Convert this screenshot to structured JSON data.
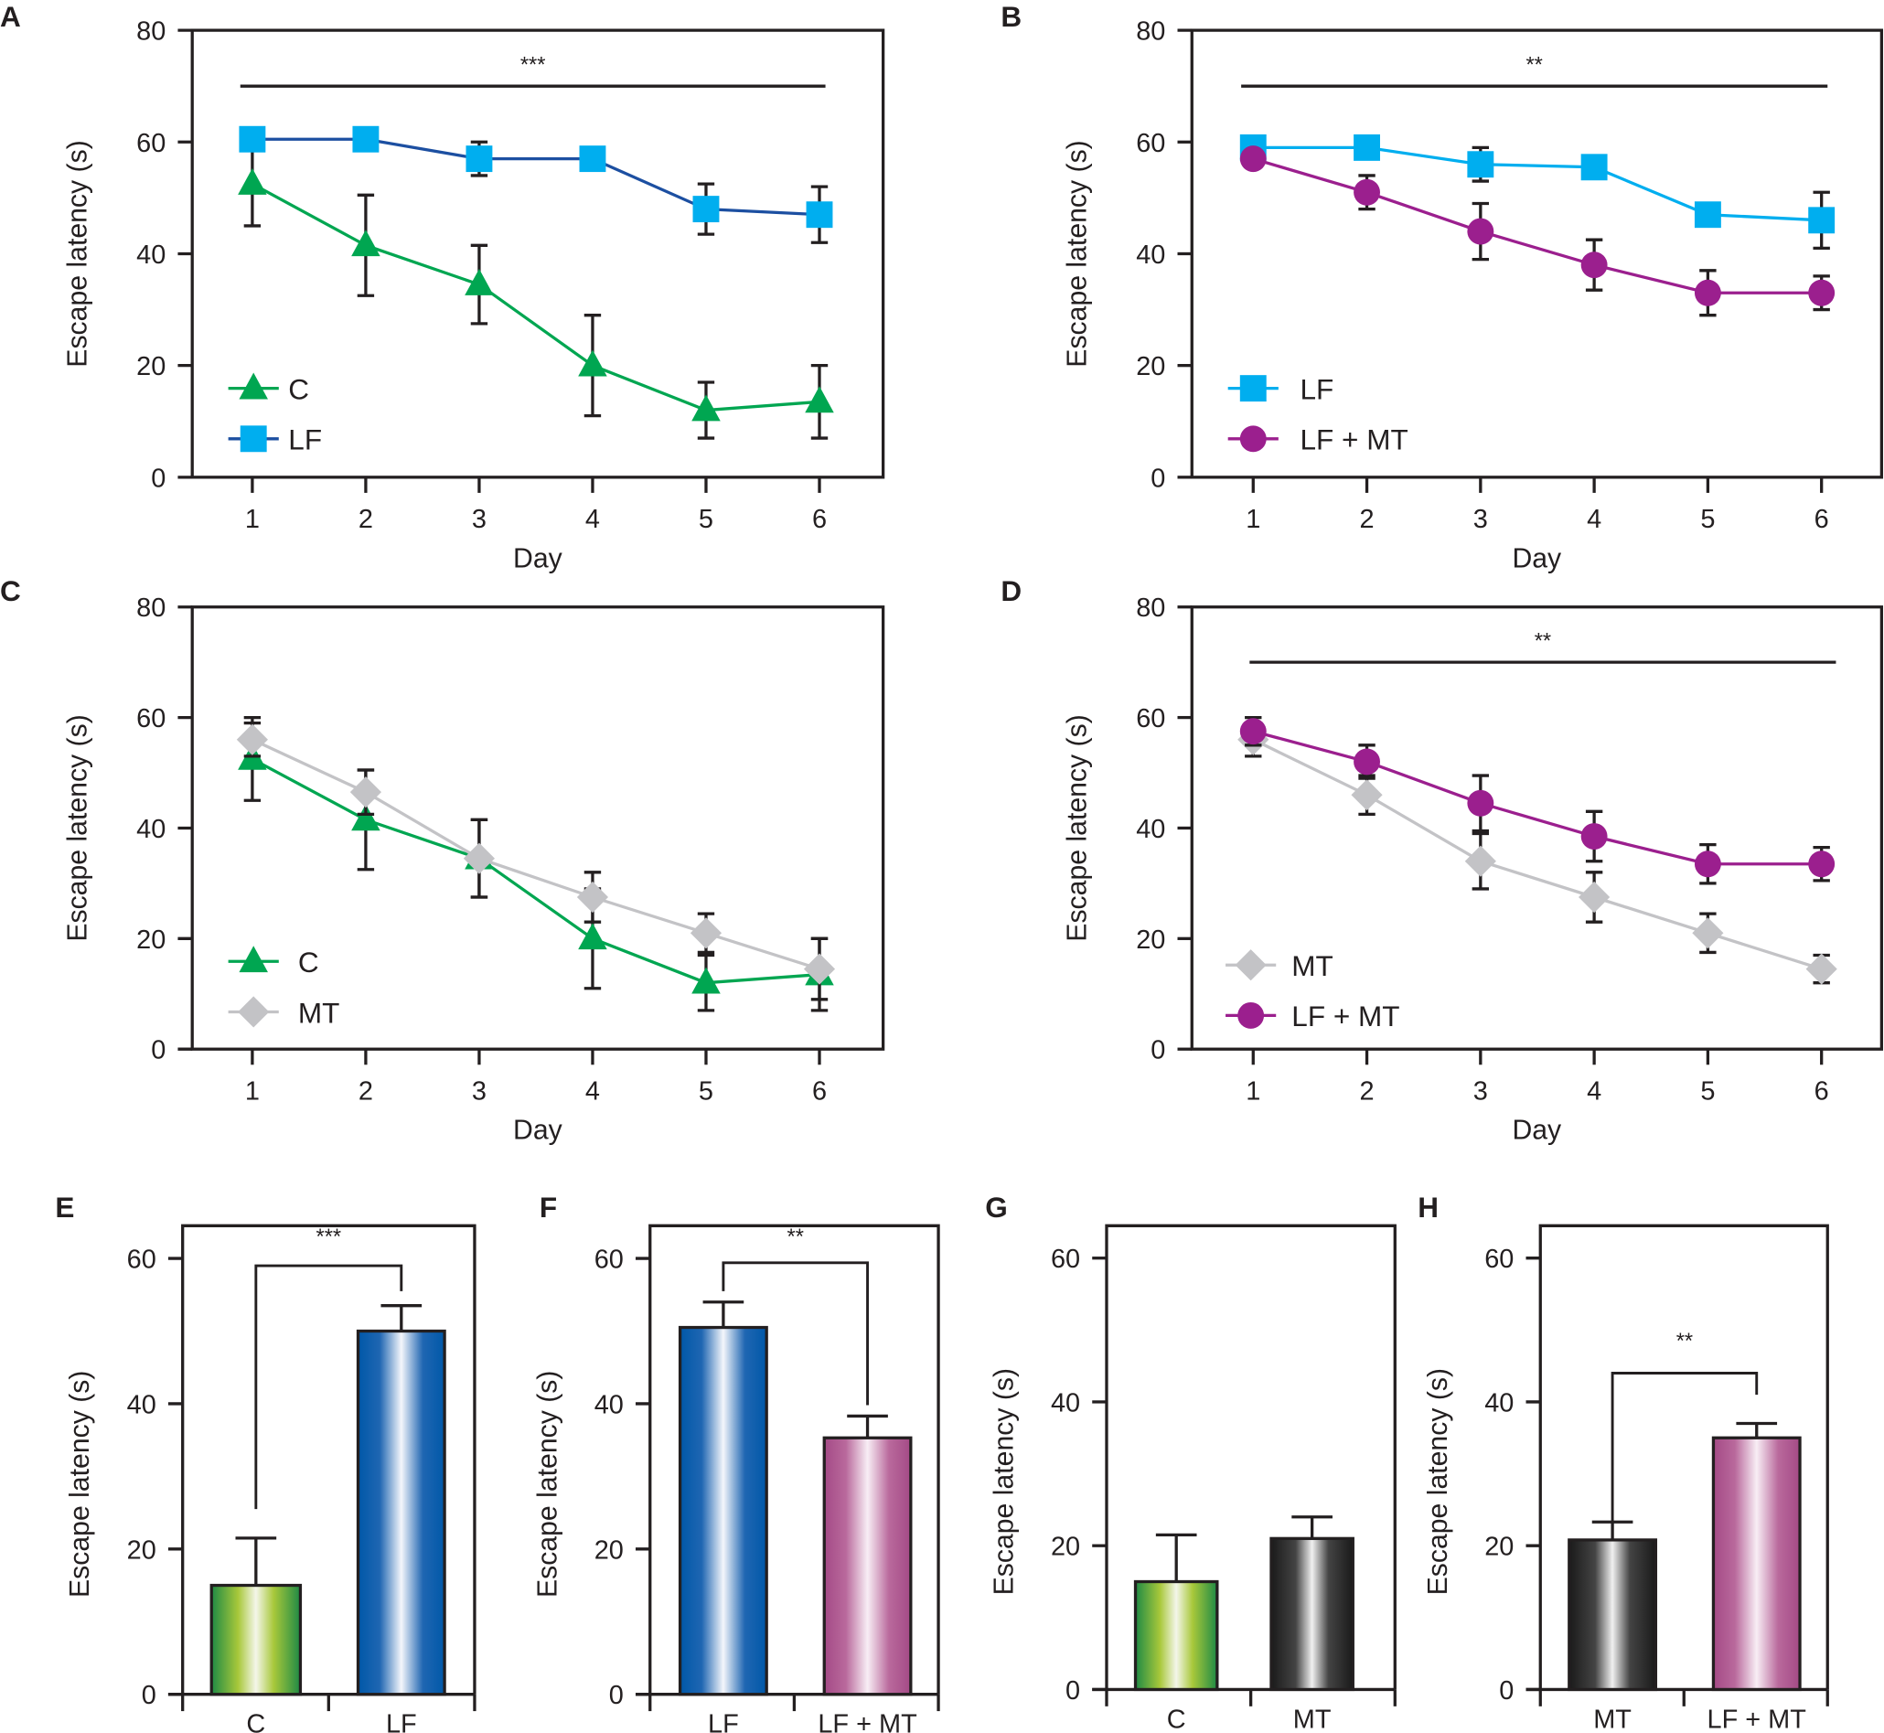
{
  "chart_data": [
    {
      "panel": "A",
      "type": "line",
      "xlabel": "Day",
      "ylabel": "Escape latency (s)",
      "x": [
        1,
        2,
        3,
        4,
        5,
        6
      ],
      "ylim": [
        0,
        80
      ],
      "yticks": [
        0,
        20,
        40,
        60,
        80
      ],
      "series": [
        {
          "name": "C",
          "values": [
            52.5,
            41.5,
            34.5,
            20,
            12,
            13.5
          ],
          "errors": [
            7.5,
            9,
            7,
            9,
            5,
            6.5
          ],
          "line_color": "#00a651",
          "marker_color": "#00a651",
          "marker": "triangle"
        },
        {
          "name": "LF",
          "values": [
            60.5,
            60.5,
            57,
            57,
            48,
            47
          ],
          "errors": [
            0,
            0,
            3,
            0,
            4.5,
            5
          ],
          "line_color": "#1c4fa1",
          "marker_color": "#00aeef",
          "marker": "square"
        }
      ],
      "significance": {
        "label": "***",
        "value": 70
      }
    },
    {
      "panel": "B",
      "type": "line",
      "xlabel": "Day",
      "ylabel": "Escape latency (s)",
      "x": [
        1,
        2,
        3,
        4,
        5,
        6
      ],
      "ylim": [
        0,
        80
      ],
      "yticks": [
        0,
        20,
        40,
        60,
        80
      ],
      "series": [
        {
          "name": "LF",
          "values": [
            59,
            59,
            56,
            55.5,
            47,
            46
          ],
          "errors": [
            0,
            0,
            3,
            0,
            0,
            5
          ],
          "line_color": "#00aeef",
          "marker_color": "#00aeef",
          "marker": "square"
        },
        {
          "name": "LF + MT",
          "values": [
            57,
            51,
            44,
            38,
            33,
            33
          ],
          "errors": [
            0,
            3,
            5,
            4.5,
            4,
            3
          ],
          "line_color": "#9b1f8e",
          "marker_color": "#9b1f8e",
          "marker": "circle"
        }
      ],
      "significance": {
        "label": "**",
        "value": 70
      }
    },
    {
      "panel": "C",
      "type": "line",
      "xlabel": "Day",
      "ylabel": "Escape latency (s)",
      "x": [
        1,
        2,
        3,
        4,
        5,
        6
      ],
      "ylim": [
        0,
        80
      ],
      "yticks": [
        0,
        20,
        40,
        60,
        80
      ],
      "series": [
        {
          "name": "C",
          "values": [
            52.5,
            41.5,
            34.5,
            20,
            12,
            13.5
          ],
          "errors": [
            7.5,
            9,
            7,
            9,
            5,
            6.5
          ],
          "line_color": "#00a651",
          "marker_color": "#00a651",
          "marker": "triangle"
        },
        {
          "name": "MT",
          "values": [
            56,
            46.5,
            34.5,
            27.5,
            21,
            14.5
          ],
          "errors": [
            3,
            4,
            7,
            4.5,
            3.5,
            5.5
          ],
          "line_color": "#c3c3c6",
          "marker_color": "#c3c3c6",
          "marker": "diamond"
        }
      ],
      "significance": null
    },
    {
      "panel": "D",
      "type": "line",
      "xlabel": "Day",
      "ylabel": "Escape latency (s)",
      "x": [
        1,
        2,
        3,
        4,
        5,
        6
      ],
      "ylim": [
        0,
        80
      ],
      "yticks": [
        0,
        20,
        40,
        60,
        80
      ],
      "series": [
        {
          "name": "MT",
          "values": [
            56,
            46,
            34,
            27.5,
            21,
            14.5
          ],
          "errors": [
            3,
            3.5,
            5,
            4.5,
            3.5,
            2.5
          ],
          "line_color": "#c3c3c6",
          "marker_color": "#c3c3c6",
          "marker": "diamond"
        },
        {
          "name": "LF + MT",
          "values": [
            57.5,
            52,
            44.5,
            38.5,
            33.5,
            33.5
          ],
          "errors": [
            2.5,
            3,
            5,
            4.5,
            3.5,
            3
          ],
          "line_color": "#9b1f8e",
          "marker_color": "#9b1f8e",
          "marker": "circle"
        }
      ],
      "significance": {
        "label": "**",
        "value": 70
      }
    },
    {
      "panel": "E",
      "type": "bar",
      "ylabel": "Escape latency (s)",
      "categories": [
        "C",
        "LF"
      ],
      "values": [
        15,
        50
      ],
      "errors": [
        6.5,
        3.5
      ],
      "fills": [
        "green",
        "blue"
      ],
      "ylim": [
        0,
        64.5
      ],
      "yticks": [
        0,
        20,
        40,
        60
      ],
      "significance": {
        "label": "***",
        "bracket": 59,
        "left_end": 25.5,
        "right_end": 55.5,
        "label_at": 62
      }
    },
    {
      "panel": "F",
      "type": "bar",
      "ylabel": "Escape latency (s)",
      "categories": [
        "LF",
        "LF + MT"
      ],
      "values": [
        50.5,
        35.3
      ],
      "errors": [
        3.5,
        3
      ],
      "fills": [
        "blue",
        "magenta"
      ],
      "ylim": [
        0,
        64.5
      ],
      "yticks": [
        0,
        20,
        40,
        60
      ],
      "significance": {
        "label": "**",
        "bracket": 59.4,
        "left_end": 55.5,
        "right_end": 39.8,
        "label_at": 62
      }
    },
    {
      "panel": "G",
      "type": "bar",
      "ylabel": "Escape latency (s)",
      "categories": [
        "C",
        "MT"
      ],
      "values": [
        15,
        21
      ],
      "errors": [
        6.5,
        3
      ],
      "fills": [
        "green",
        "black"
      ],
      "ylim": [
        0,
        64.5
      ],
      "yticks": [
        0,
        20,
        40,
        60
      ],
      "significance": null
    },
    {
      "panel": "H",
      "type": "bar",
      "ylabel": "Escape latency (s)",
      "categories": [
        "MT",
        "LF + MT"
      ],
      "values": [
        20.8,
        35
      ],
      "errors": [
        2.5,
        2
      ],
      "fills": [
        "black",
        "magenta"
      ],
      "ylim": [
        0,
        64.5
      ],
      "yticks": [
        0,
        20,
        40,
        60
      ],
      "significance": {
        "label": "**",
        "bracket": 44,
        "left_end": 23,
        "right_end": 41,
        "label_at": 47.5
      }
    }
  ],
  "colors": {
    "green": "#1e8a45",
    "green_light": "#a8c83a",
    "blue": "#0058a8",
    "magenta": "#a44a86",
    "black": "#1a1a1a",
    "axis": "#231f20"
  }
}
